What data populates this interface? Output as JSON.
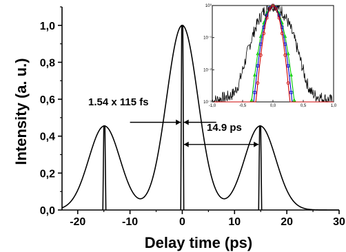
{
  "chart_data": [
    {
      "type": "line",
      "title": "",
      "xlabel": "Delay time (ps)",
      "ylabel": "Intensity (a. u.)",
      "xlim": [
        -23,
        30
      ],
      "ylim": [
        0,
        1.1
      ],
      "x_ticks": [
        -20,
        -10,
        0,
        10,
        20,
        30
      ],
      "x_tick_labels": [
        "-20",
        "-10",
        "0",
        "10",
        "20",
        "30"
      ],
      "y_ticks": [
        0,
        0.2,
        0.4,
        0.6,
        0.8,
        1.0
      ],
      "y_tick_labels": [
        "0,0",
        "0,2",
        "0,4",
        "0,6",
        "0,8",
        "1,0"
      ],
      "grid": false,
      "series": [
        {
          "color": "#000000",
          "components": [
            {
              "center": -14.9,
              "amplitude": 0.455,
              "sigma": 3.0
            },
            {
              "center": 0,
              "amplitude": 1.0,
              "sigma": 3.0
            },
            {
              "center": 14.9,
              "amplitude": 0.455,
              "sigma": 3.0
            }
          ],
          "spikes": [
            {
              "x": -14.9,
              "y": 0.455
            },
            {
              "x": 0,
              "y": 1.0
            },
            {
              "x": 14.9,
              "y": 0.455
            }
          ]
        }
      ],
      "annotations": [
        {
          "text": "1.54 x 115 fs",
          "x": -12.5,
          "y": 0.545
        },
        {
          "text": "14.9 ps",
          "x": 7.5,
          "y": 0.41
        }
      ],
      "arrows": [
        {
          "from": [
            -10,
            0.475
          ],
          "to": [
            -0.3,
            0.475
          ],
          "direction": "right"
        },
        {
          "from": [
            6.5,
            0.475
          ],
          "to": [
            0.3,
            0.475
          ],
          "direction": "left"
        },
        {
          "from": [
            0.3,
            0.355
          ],
          "to": [
            14.6,
            0.355
          ],
          "direction": "both"
        }
      ]
    },
    {
      "type": "line",
      "role": "inset",
      "title": "",
      "xlim": [
        -1.0,
        1.0
      ],
      "ylim_log": [
        0.001,
        1
      ],
      "yscale": "log",
      "x_ticks": [
        -1.0,
        -0.5,
        0.0,
        0.5,
        1.0
      ],
      "x_tick_labels": [
        "-1,0",
        "-0,5",
        "0,0",
        "0,5",
        "1,0"
      ],
      "y_ticks": [
        0.001,
        0.01,
        0.1,
        1
      ],
      "y_tick_labels": [
        "10⁻³",
        "10⁻²",
        "10⁻¹",
        "10⁰"
      ],
      "series": [
        {
          "color": "#000000",
          "style": "noisy",
          "sigma": 0.16,
          "floor": 0.0035
        },
        {
          "color": "#00cc00",
          "marker": "triangle",
          "sigma": 0.095,
          "floor": 0.001
        },
        {
          "color": "#0000cc",
          "marker": "square",
          "sigma": 0.085,
          "floor": 0.001
        },
        {
          "color": "#cc0000",
          "marker": "circle",
          "sigma": 0.075,
          "floor": 0.001
        }
      ]
    }
  ]
}
